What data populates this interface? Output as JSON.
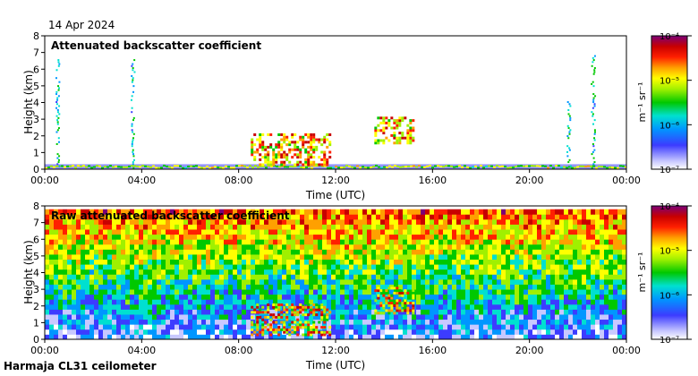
{
  "header": {
    "date": "14 Apr 2024"
  },
  "footer": {
    "site": "Harmaja CL31 ceilometer"
  },
  "chart_data": [
    {
      "type": "heatmap",
      "title": "Attenuated backscatter coefficient",
      "xlabel": "Time (UTC)",
      "ylabel": "Height (km)",
      "x_ticks": [
        "00:00",
        "04:00",
        "08:00",
        "12:00",
        "16:00",
        "20:00",
        "00:00"
      ],
      "y_ticks": [
        "0",
        "1",
        "2",
        "3",
        "4",
        "5",
        "6",
        "7",
        "8"
      ],
      "xlim_hours": [
        0,
        24
      ],
      "ylim_km": [
        0,
        8
      ],
      "colorbar": {
        "scale": "log",
        "unit": "m⁻¹ sr⁻¹",
        "tick_labels": [
          "10⁻⁴",
          "10⁻⁵",
          "10⁻⁶",
          "10⁻⁷"
        ],
        "range": [
          1e-07,
          0.0001
        ]
      },
      "features": [
        {
          "kind": "surface-layer",
          "from_h": 0,
          "to_h": 24,
          "base_km": 0,
          "top_km": 0.3
        },
        {
          "kind": "precip-column",
          "at_h": 0.5,
          "top_km": 6.5
        },
        {
          "kind": "precip-column",
          "at_h": 3.6,
          "top_km": 6.6
        },
        {
          "kind": "cloud",
          "from_h": 8.5,
          "to_h": 11.8,
          "base_km": 0.2,
          "top_km": 2.0
        },
        {
          "kind": "cloud",
          "from_h": 13.6,
          "to_h": 15.2,
          "base_km": 1.5,
          "top_km": 3.0
        },
        {
          "kind": "precip-column",
          "at_h": 21.6,
          "top_km": 4.0
        },
        {
          "kind": "precip-column",
          "at_h": 22.6,
          "top_km": 6.8
        }
      ]
    },
    {
      "type": "heatmap",
      "title": "Raw attenuated backscatter coefficient",
      "xlabel": "Time (UTC)",
      "ylabel": "Height (km)",
      "x_ticks": [
        "00:00",
        "04:00",
        "08:00",
        "12:00",
        "16:00",
        "20:00",
        "00:00"
      ],
      "y_ticks": [
        "0",
        "1",
        "2",
        "3",
        "4",
        "5",
        "6",
        "7",
        "8"
      ],
      "xlim_hours": [
        0,
        24
      ],
      "ylim_km": [
        0,
        8
      ],
      "colorbar": {
        "scale": "log",
        "unit": "m⁻¹ sr⁻¹",
        "tick_labels": [
          "10⁻⁴",
          "10⁻⁵",
          "10⁻⁶",
          "10⁻⁷"
        ],
        "range": [
          1e-07,
          0.0001
        ]
      },
      "features": [
        {
          "kind": "noisy-background",
          "from_h": 0,
          "to_h": 24,
          "base_km": 0,
          "top_km": 7.7
        },
        {
          "kind": "cloud",
          "from_h": 8.5,
          "to_h": 11.8,
          "base_km": 0.2,
          "top_km": 2.0
        },
        {
          "kind": "cloud",
          "from_h": 13.6,
          "to_h": 15.2,
          "base_km": 1.5,
          "top_km": 3.0
        }
      ]
    }
  ]
}
